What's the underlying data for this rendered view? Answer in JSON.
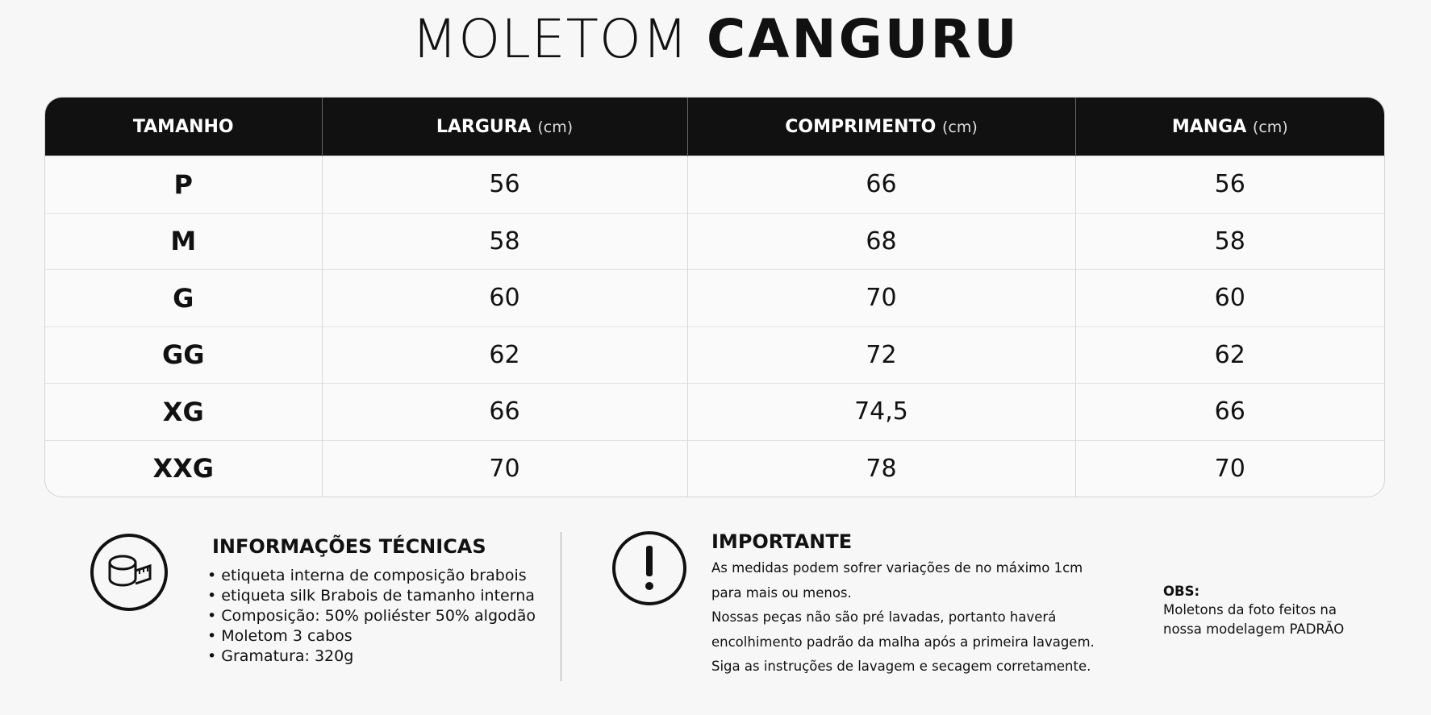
{
  "title": {
    "light": "MOLETOM",
    "bold": "CANGURU"
  },
  "table": {
    "header": [
      {
        "name": "TAMANHO"
      },
      {
        "name": "LARGURA",
        "unit": "(cm)"
      },
      {
        "name": "COMPRIMENTO",
        "unit": "(cm)"
      },
      {
        "name": "MANGA",
        "unit": "(cm)"
      }
    ],
    "rows": [
      [
        "P",
        "56",
        "66",
        "56"
      ],
      [
        "M",
        "58",
        "68",
        "58"
      ],
      [
        "G",
        "60",
        "70",
        "60"
      ],
      [
        "GG",
        "62",
        "72",
        "62"
      ],
      [
        "XG",
        "66",
        "74,5",
        "66"
      ],
      [
        "XXG",
        "70",
        "78",
        "70"
      ]
    ]
  },
  "info": {
    "title": "INFORMAÇÕES TÉCNICAS",
    "items": [
      "etiqueta interna de composição brabois",
      "etiqueta silk Brabois de tamanho interna",
      "Composição: 50% poliéster 50% algodão",
      "Moletom 3 cabos",
      "Gramatura: 320g"
    ]
  },
  "important": {
    "title": "IMPORTANTE",
    "lines": [
      "As medidas podem sofrer variações de no máximo 1cm",
      "para mais ou menos.",
      "Nossas peças não são pré lavadas, portanto haverá",
      "encolhimento padrão da malha após a primeira lavagem.",
      "Siga as instruções de lavagem e secagem corretamente."
    ]
  },
  "obs": {
    "label": "OBS:",
    "lines": [
      "Moletons da foto feitos na",
      "nossa modelagem PADRÃO"
    ]
  }
}
